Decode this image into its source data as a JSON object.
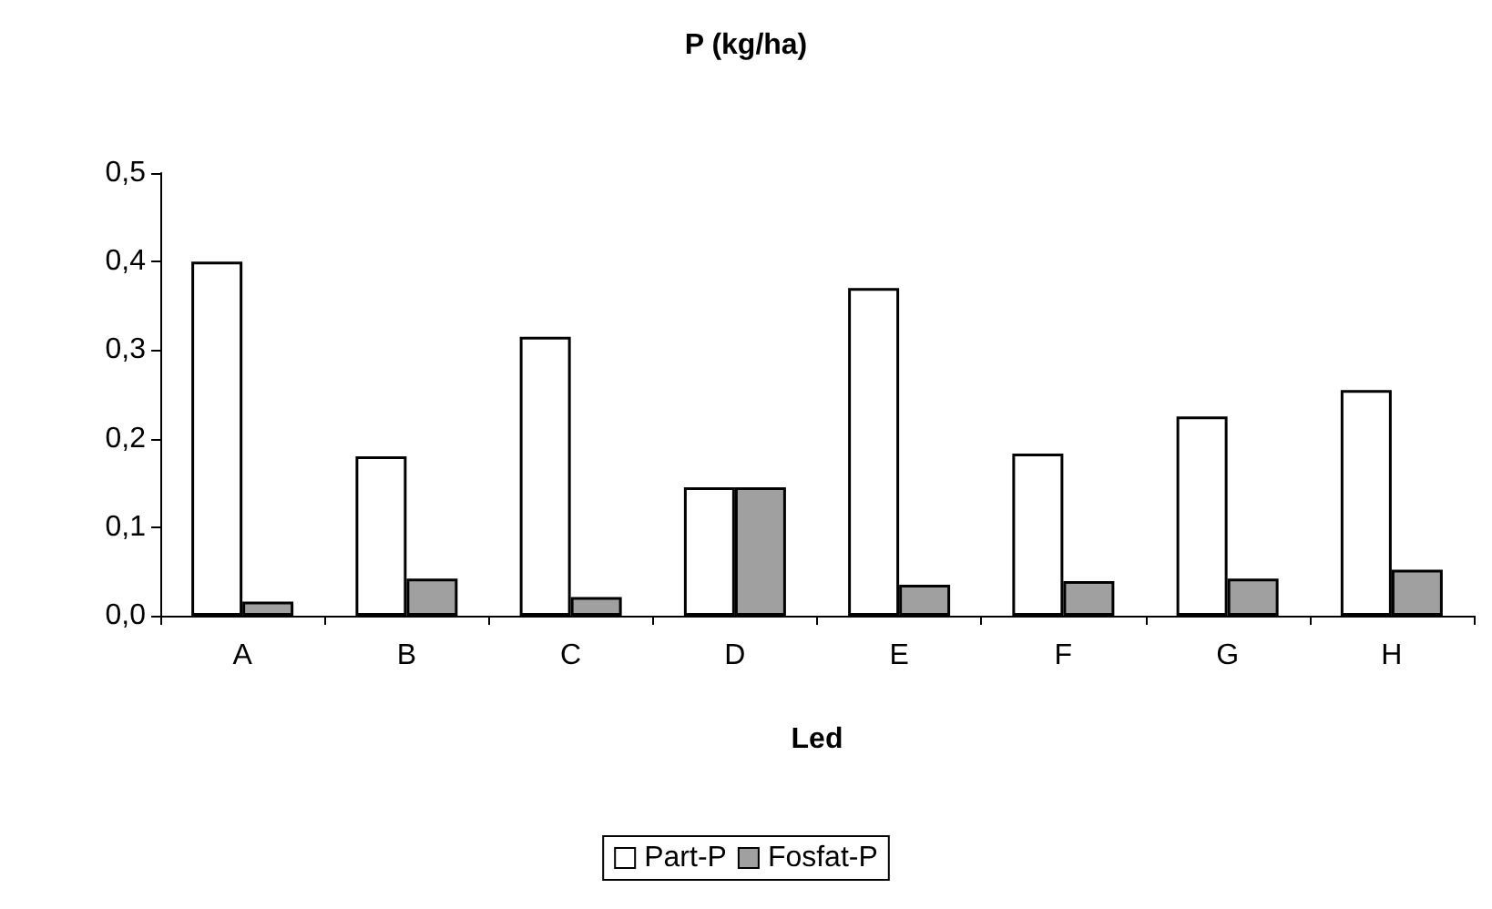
{
  "chart_data": {
    "type": "bar",
    "title": "P (kg/ha)",
    "xlabel": "Led",
    "categories": [
      "A",
      "B",
      "C",
      "D",
      "E",
      "F",
      "G",
      "H"
    ],
    "series": [
      {
        "name": "Part-P",
        "color": "#ffffff",
        "values": [
          0.4,
          0.18,
          0.315,
          0.145,
          0.37,
          0.183,
          0.225,
          0.255
        ]
      },
      {
        "name": "Fosfat-P",
        "color": "#a0a0a0",
        "values": [
          0.016,
          0.042,
          0.021,
          0.145,
          0.035,
          0.039,
          0.042,
          0.052
        ]
      }
    ],
    "ylim": [
      0,
      0.5
    ],
    "yticks": [
      {
        "value": 0,
        "label": "0,0"
      },
      {
        "value": 0.1,
        "label": "0,1"
      },
      {
        "value": 0.2,
        "label": "0,2"
      },
      {
        "value": 0.3,
        "label": "0,3"
      },
      {
        "value": 0.4,
        "label": "0,4"
      },
      {
        "value": 0.5,
        "label": "0,5"
      }
    ],
    "grid": false,
    "legend": "bottom"
  }
}
